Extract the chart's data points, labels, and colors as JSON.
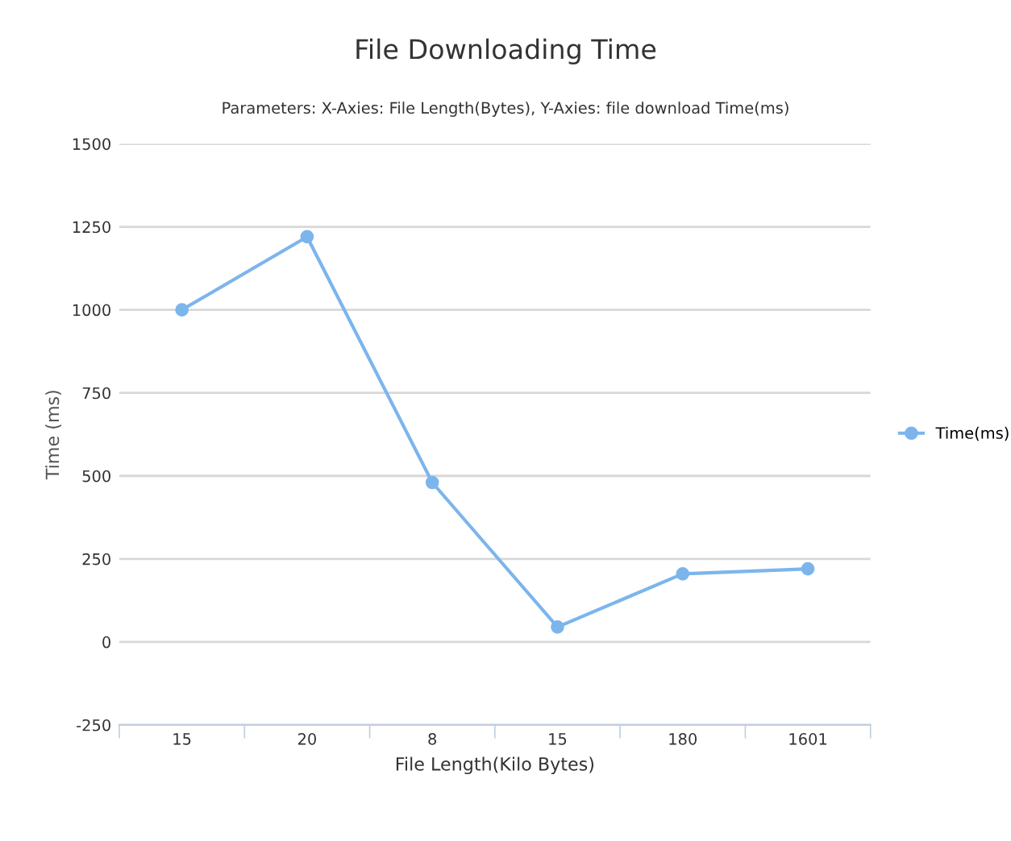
{
  "chart_data": {
    "type": "line",
    "title": "File Downloading Time",
    "subtitle": "Parameters: X-Axies: File Length(Bytes), Y-Axies: file download Time(ms)",
    "xlabel": "File Length(Kilo Bytes)",
    "ylabel": "Time (ms)",
    "categories": [
      "15",
      "20",
      "8",
      "15",
      "180",
      "1601"
    ],
    "series": [
      {
        "name": "Time(ms)",
        "color": "#7cb5ec",
        "values": [
          1000,
          1220,
          480,
          45,
          205,
          220
        ]
      }
    ],
    "ylim": [
      -250,
      1500
    ],
    "yticks": [
      -250,
      0,
      250,
      500,
      750,
      1000,
      1250,
      1500
    ],
    "grid": "y",
    "legend": "right",
    "marker": "circle",
    "line_style": "solid"
  }
}
